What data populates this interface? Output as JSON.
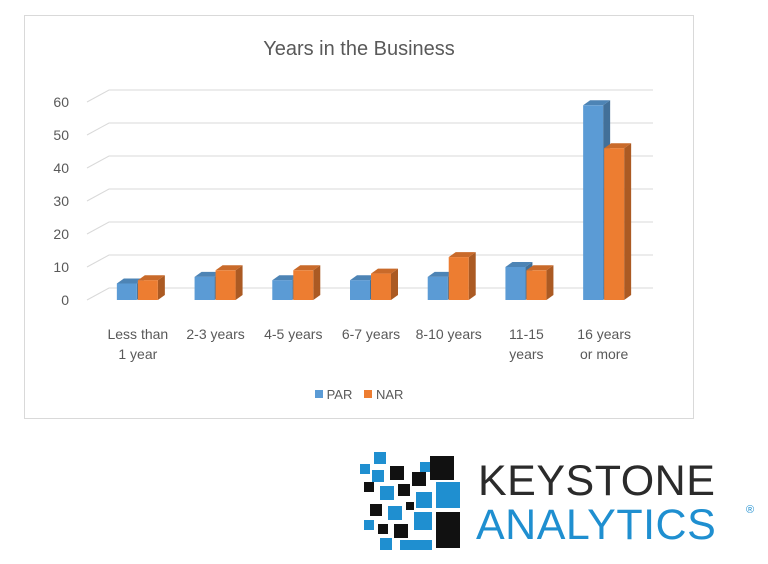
{
  "chart_data": {
    "type": "bar",
    "title": "Years in the Business",
    "categories": [
      [
        "Less than",
        "1 year"
      ],
      [
        "2-3 years"
      ],
      [
        "4-5 years"
      ],
      [
        "6-7 years"
      ],
      [
        "8-10 years"
      ],
      [
        "11-15",
        "years"
      ],
      [
        "16 years",
        "or more"
      ]
    ],
    "series": [
      {
        "name": "PAR",
        "color": "#5b9bd5",
        "values": [
          5,
          7,
          6,
          6,
          7,
          10,
          59
        ]
      },
      {
        "name": "NAR",
        "color": "#ed7d31",
        "values": [
          6,
          9,
          9,
          8,
          13,
          9,
          46
        ]
      }
    ],
    "yticks": [
      0,
      10,
      20,
      30,
      40,
      50,
      60
    ],
    "ylim": [
      0,
      60
    ],
    "grid": true,
    "legend_position": "bottom",
    "style": "3d-clustered-column"
  },
  "logo": {
    "line1": "KEYSTONE",
    "line2": "ANALYTICS",
    "registered": "®"
  }
}
